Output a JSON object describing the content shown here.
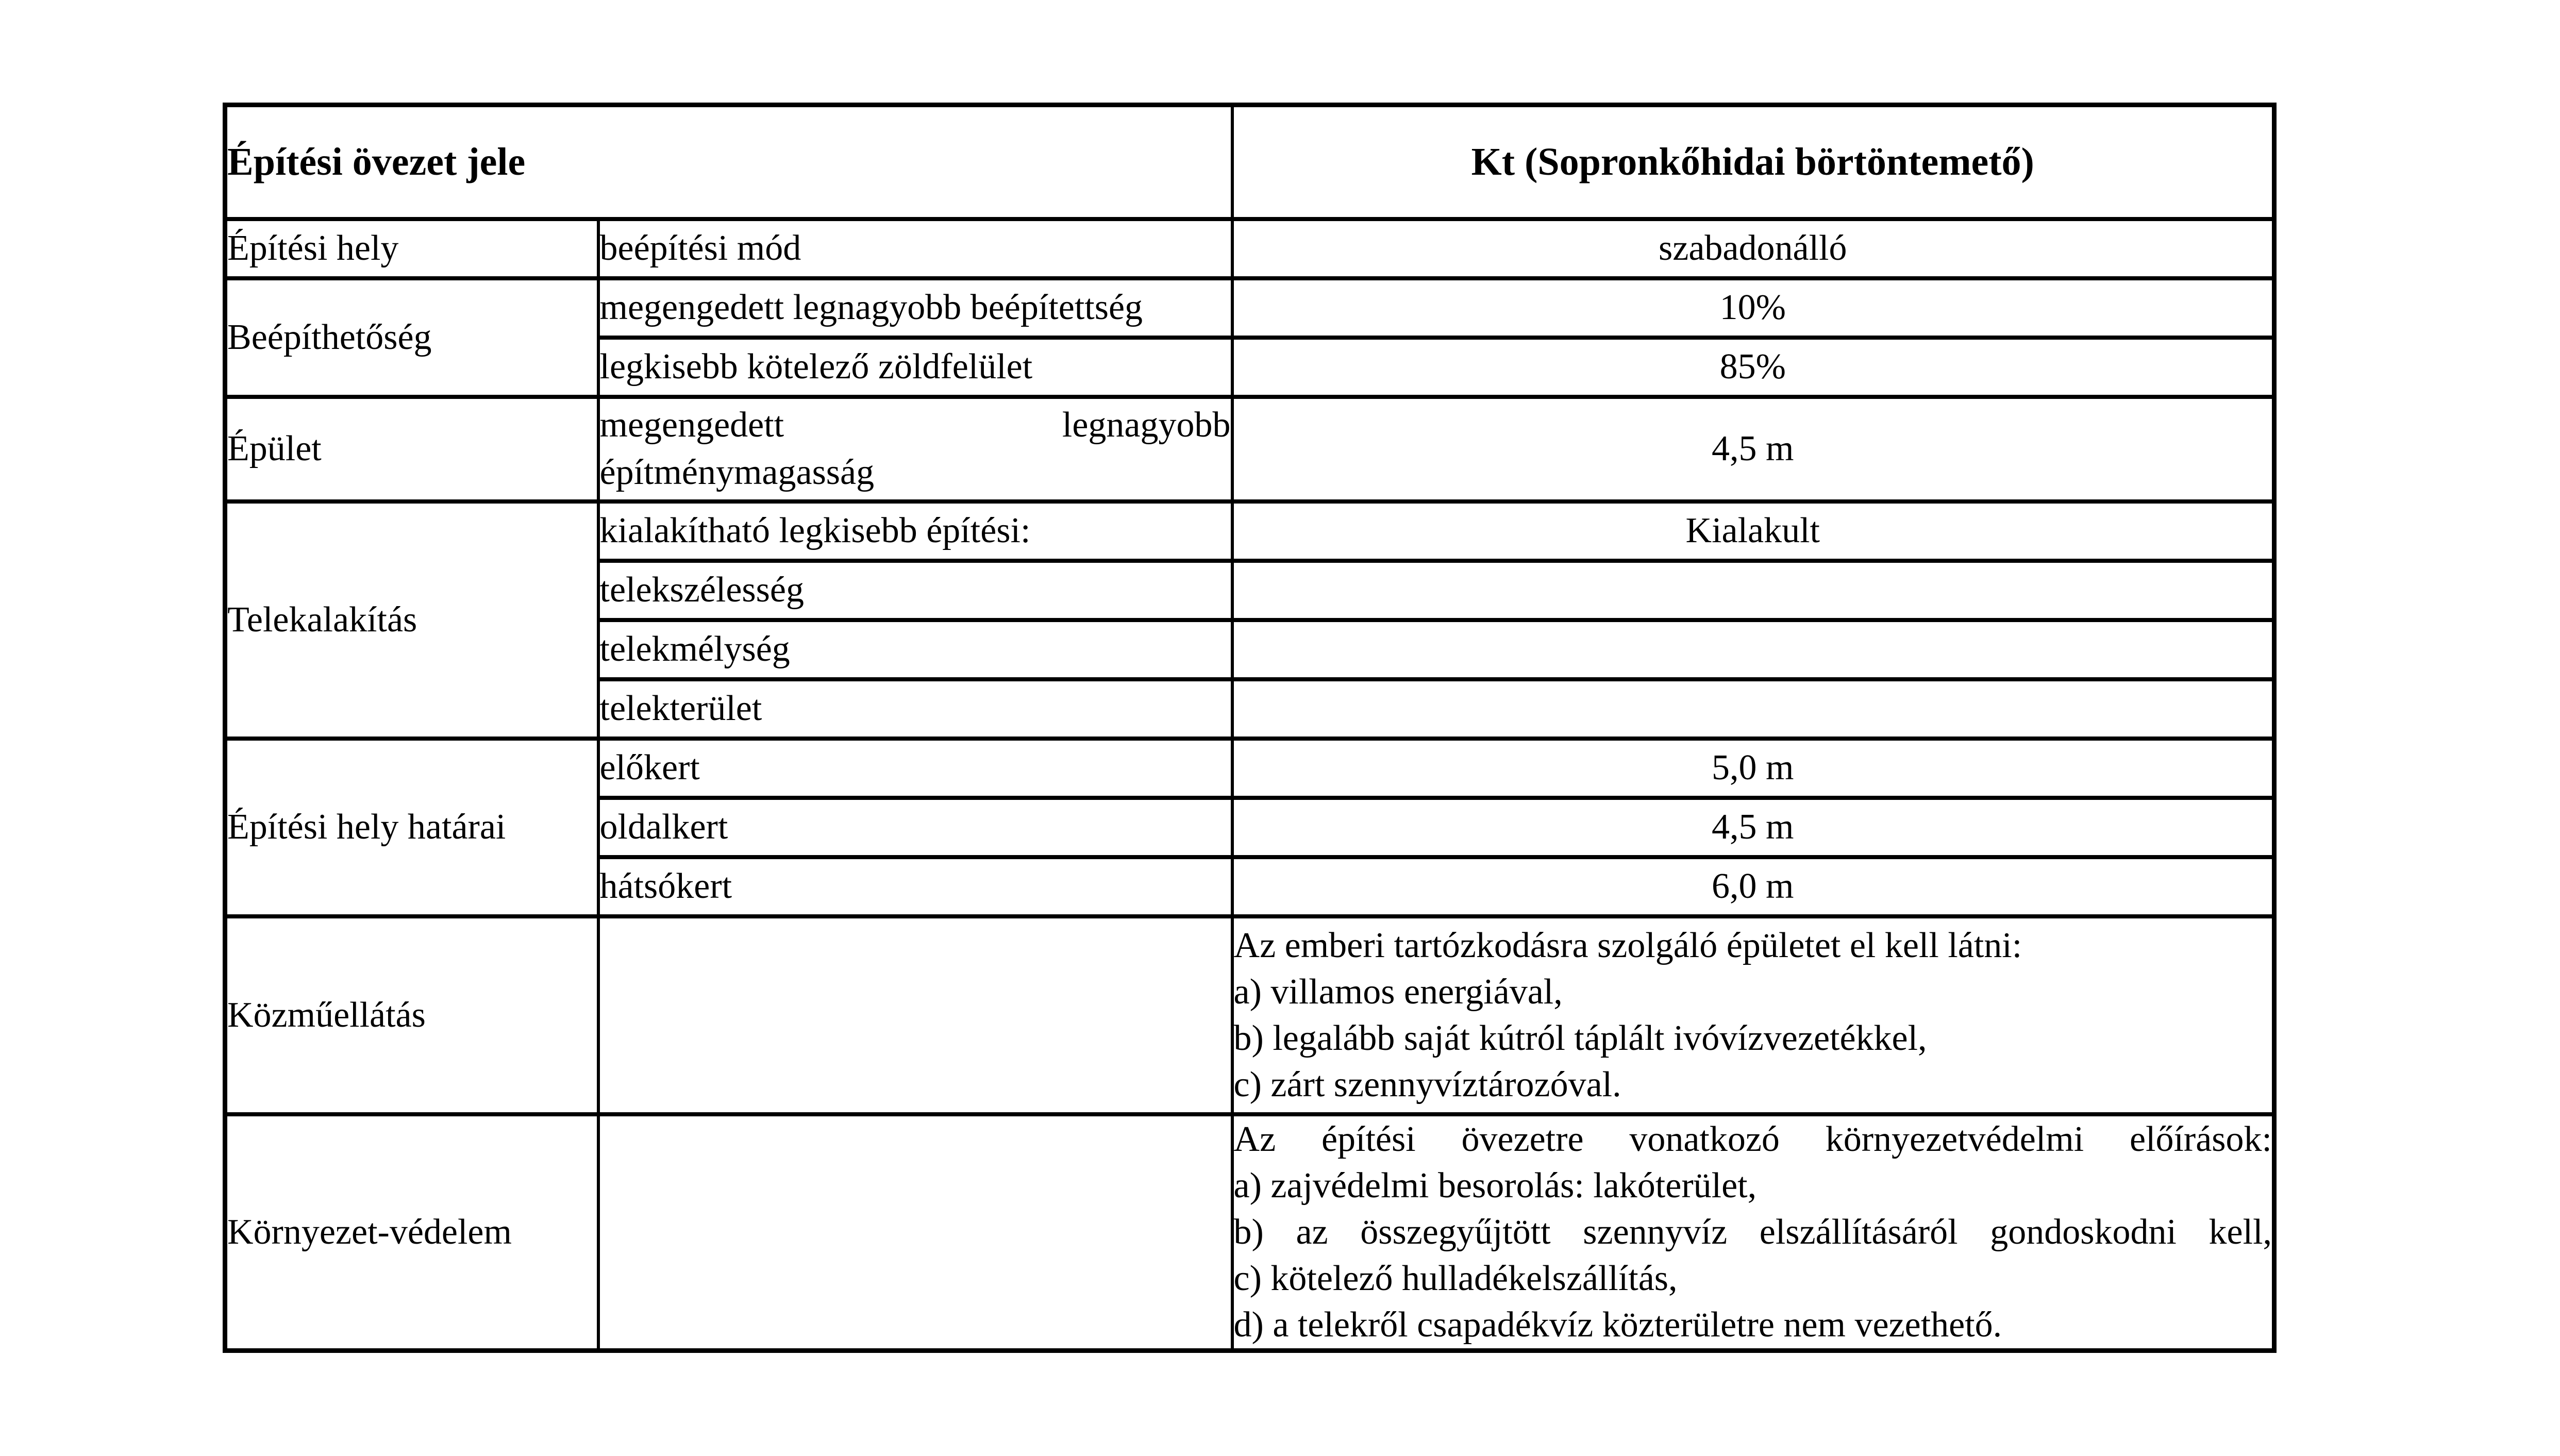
{
  "document": {
    "paper_color": "#ffffff",
    "ink_color": "#000000"
  },
  "table": {
    "header": {
      "zone_label": "Építési övezet jele",
      "zone_value": "Kt (Sopronkőhidai börtöntemető)"
    },
    "groups": {
      "epitesi_hely": "Építési hely",
      "beepithetoseg": "Beépíthetőség",
      "epulet": "Épület",
      "telekalakitas": "Telekalakítás",
      "epitesi_hely_hatarai": "Építési hely határai",
      "kozmuellatas": "Közműellátás",
      "kornyezetvedelem": "Környezet-védelem"
    },
    "params": {
      "beepitesi_mod": "beépítési mód",
      "megengedett_beepitettseg": "megengedett legnagyobb beépítettség",
      "zoldfelulet": "legkisebb kötelező zöldfelület",
      "kialakithato": "kialakítható legkisebb építési:",
      "telekszelesseg": "telekszélesség",
      "telekmelyseg": "telekmélység",
      "telekterulet": "telekterület",
      "elokert": "előkert",
      "oldalkert": "oldalkert",
      "hatsokert": "hátsókert"
    },
    "epulet_param_lines": [
      {
        "text": "megengedett legnagyobb",
        "justified": true
      },
      {
        "text": "építménymagasság",
        "justified": false
      }
    ],
    "values": {
      "beepitesi_mod": "szabadonálló",
      "megengedett_beepitettseg": "10%",
      "zoldfelulet": "85%",
      "epitmenymagassag": "4,5 m",
      "kialakithato": "Kialakult",
      "telekszelesseg": "",
      "telekmelyseg": "",
      "telekterulet": "",
      "elokert": "5,0 m",
      "oldalkert": "4,5 m",
      "hatsokert": "6,0 m"
    },
    "kozmuellatas_lines": [
      {
        "text": "Az emberi tartózkodásra szolgáló épületet el kell látni:",
        "justified": false
      },
      {
        "text": "a) villamos energiával,",
        "justified": false
      },
      {
        "text": "b) legalább saját kútról táplált ivóvízvezetékkel,",
        "justified": false
      },
      {
        "text": "c) zárt szennyvíztározóval.",
        "justified": false
      }
    ],
    "kornyezetvedelem_lines": [
      {
        "text": "Az építési övezetre vonatkozó környezetvédelmi előírások:",
        "justified": true
      },
      {
        "text": "a) zajvédelmi besorolás: lakóterület,",
        "justified": false
      },
      {
        "text": "b) az összegyűjtött szennyvíz elszállításáról gondoskodni kell,",
        "justified": true
      },
      {
        "text": "c) kötelező hulladékelszállítás,",
        "justified": false
      },
      {
        "text": "d) a telekről csapadékvíz közterületre nem vezethető.",
        "justified": false
      }
    ]
  }
}
